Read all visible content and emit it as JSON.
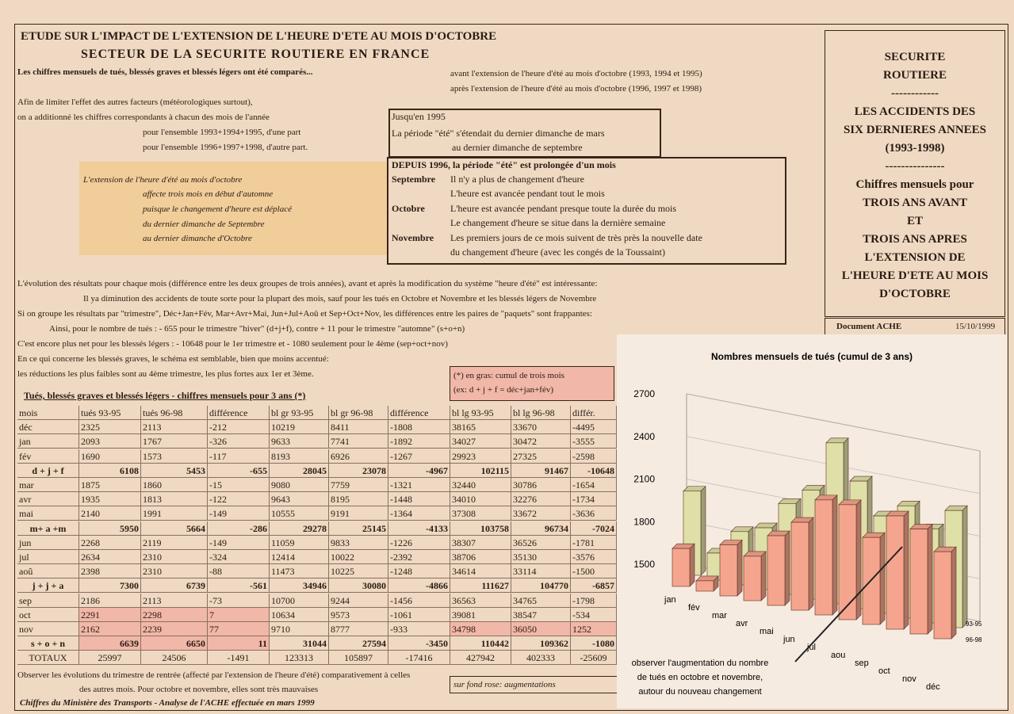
{
  "header": {
    "title": "ETUDE SUR L'IMPACT DE L'EXTENSION DE L'HEURE D'ETE AU MOIS D'OCTOBRE",
    "subtitle": "SECTEUR DE LA SECURITE ROUTIERE EN FRANCE"
  },
  "intro": {
    "compared": "Les chiffres mensuels de tués, blessés graves et blessés légers ont été comparés...",
    "before": "avant l'extension de l'heure d'été au mois d'octobre (1993, 1994 et 1995)",
    "after": "après l'extension de l'heure d'été au mois d'octobre (1996, 1997 et 1998)",
    "lines": [
      "Afin de limiter l'effet des autres facteurs (météorologiques surtout),",
      "on a additionné les chiffres correspondants à chacun des mois de l'année",
      "pour l'ensemble 1993+1994+1995, d'une part",
      "pour l'ensemble 1996+1997+1998, d'autre part."
    ]
  },
  "italic_note": [
    "L'extension de l'heure d'été au mois d'octobre",
    "affecte trois mois en début d'automne",
    "puisque le changement d'heure est déplacé",
    "du dernier dimanche de Septembre",
    "au dernier dimanche d'Octobre"
  ],
  "box_until_1995": {
    "heading": "Jusqu'en 1995",
    "lines": [
      "La période \"été\" s'étendait du dernier dimanche de mars",
      "au dernier dimanche de septembre"
    ]
  },
  "box_since_1996": {
    "heading": "DEPUIS 1996, la période \"été\" est prolongée d'un mois",
    "months": [
      {
        "month": "Septembre",
        "lines": [
          "Il n'y a plus de changement d'heure",
          "L'heure est avancée pendant tout le mois"
        ]
      },
      {
        "month": "Octobre",
        "lines": [
          "L'heure est avancée pendant presque toute la durée du mois",
          "Le changement d'heure se situe dans la dernière semaine"
        ]
      },
      {
        "month": "Novembre",
        "lines": [
          "Les premiers jours de ce mois suivent de très près la nouvelle date",
          "du changement d'heure (avec les congés de la Toussaint)"
        ]
      }
    ]
  },
  "analysis": [
    "L'évolution des résultats pour chaque mois (différence entre les deux groupes de trois années), avant et après la modification du système \"heure d'été\" est intéressante:",
    "Il ya diminution des accidents de toute sorte pour la plupart des mois, sauf pour les tués en Octobre et Novembre et les blessés légers de Novembre",
    "Si on groupe les résultats par \"trimestre\", Déc+Jan+Fév, Mar+Avr+Mai, Jun+Jul+Aoû et Sep+Oct+Nov, les différences entre les paires de \"paquets\" sont frappantes:",
    "Ainsi, pour le nombre de tués : - 655 pour le trimestre \"hiver\" (d+j+f), contre + 11 pour le trimestre \"automne\" (s+o+n)",
    "C'est encore plus net pour les blessés légers : - 10648 pour le 1er trimestre et - 1080 seulement pour le 4ème (sep+oct+nov)",
    "En ce qui concerne les blessés graves, le schéma est semblable, bien que moins accentué:",
    "les réductions les plus faibles sont au 4ème trimestre, les plus fortes aux 1er et 3ème."
  ],
  "note_box": [
    "(*) en gras: cumul de trois mois",
    "(ex: d + j + f = déc+jan+fév)"
  ],
  "table": {
    "title": "Tués, blessés graves et blessés légers - chiffres mensuels pour 3 ans (*)",
    "columns": [
      "mois",
      "tués 93-95",
      "tués 96-98",
      "différence",
      "bl gr 93-95",
      "bl gr 96-98",
      "différence",
      "bl lg 93-95",
      "bl lg 96-98",
      "différ."
    ],
    "rows": [
      [
        "déc",
        2325,
        2113,
        -212,
        10219,
        8411,
        -1808,
        38165,
        33670,
        -4495
      ],
      [
        "jan",
        2093,
        1767,
        -326,
        9633,
        7741,
        -1892,
        34027,
        30472,
        -3555
      ],
      [
        "fév",
        1690,
        1573,
        -117,
        8193,
        6926,
        -1267,
        29923,
        27325,
        -2598
      ],
      [
        "d + j + f",
        6108,
        5453,
        -655,
        28045,
        23078,
        -4967,
        102115,
        91467,
        -10648
      ],
      [
        "mar",
        1875,
        1860,
        -15,
        9080,
        7759,
        -1321,
        32440,
        30786,
        -1654
      ],
      [
        "avr",
        1935,
        1813,
        -122,
        9643,
        8195,
        -1448,
        34010,
        32276,
        -1734
      ],
      [
        "mai",
        2140,
        1991,
        -149,
        10555,
        9191,
        -1364,
        37308,
        33672,
        -3636
      ],
      [
        "m+ a +m",
        5950,
        5664,
        -286,
        29278,
        25145,
        -4133,
        103758,
        96734,
        -7024
      ],
      [
        "jun",
        2268,
        2119,
        -149,
        11059,
        9833,
        -1226,
        38307,
        36526,
        -1781
      ],
      [
        "jul",
        2634,
        2310,
        -324,
        12414,
        10022,
        -2392,
        38706,
        35130,
        -3576
      ],
      [
        "aoû",
        2398,
        2310,
        -88,
        11473,
        10225,
        -1248,
        34614,
        33114,
        -1500
      ],
      [
        "j + j + a",
        7300,
        6739,
        -561,
        34946,
        30080,
        -4866,
        111627,
        104770,
        -6857
      ],
      [
        "sep",
        2186,
        2113,
        -73,
        10700,
        9244,
        -1456,
        36563,
        34765,
        -1798
      ],
      [
        "oct",
        2291,
        2298,
        7,
        10634,
        9573,
        -1061,
        39081,
        38547,
        -534
      ],
      [
        "nov",
        2162,
        2239,
        77,
        9710,
        8777,
        -933,
        34798,
        36050,
        1252
      ],
      [
        "s + o + n",
        6639,
        6650,
        11,
        31044,
        27594,
        -3450,
        110442,
        109362,
        -1080
      ],
      [
        "TOTAUX",
        25997,
        24506,
        -1491,
        123313,
        105897,
        -17416,
        427942,
        402333,
        -25609
      ]
    ]
  },
  "footer": {
    "lines": [
      "Observer les évolutions du trimestre de rentrée (affecté par l'extension de l'heure d'été) comparativement à celles",
      "des autres mois. Pour octobre et novembre, elles sont très mauvaises"
    ],
    "pink_note": "sur fond rose: augmentations",
    "source": "Chiffres du Ministère des Transports - Analyse de l'ACHE effectuée en mars 1999"
  },
  "sidebar": {
    "lines": [
      "SECURITE",
      "ROUTIERE",
      "------------",
      "LES ACCIDENTS DES",
      "SIX DERNIERES ANNEES",
      "(1993-1998)",
      "---------------",
      "Chiffres mensuels pour",
      "TROIS ANS AVANT",
      "ET",
      "TROIS ANS APRES",
      "L'EXTENSION DE",
      "L'HEURE D'ETE AU MOIS",
      "D'OCTOBRE"
    ],
    "document": "Document ACHE",
    "date": "15/10/1999"
  },
  "chart": {
    "type": "bar3d",
    "title": "Nombres mensuels de tués (cumul de 3 ans)",
    "categories": [
      "jan",
      "fév",
      "mar",
      "avr",
      "mai",
      "jun",
      "jul",
      "aou",
      "sep",
      "oct",
      "nov",
      "déc"
    ],
    "series": [
      {
        "name": "93-95",
        "color": "#dfe0a8",
        "values": [
          2093,
          1690,
          1875,
          1935,
          2140,
          2268,
          2634,
          2398,
          2186,
          2291,
          2162,
          2325
        ]
      },
      {
        "name": "96-98",
        "color": "#f5a58e",
        "values": [
          1767,
          1573,
          1860,
          1813,
          1991,
          2119,
          2310,
          2310,
          2113,
          2298,
          2239,
          2113
        ]
      }
    ],
    "ylim": [
      1500,
      2700
    ],
    "yticks": [
      1500,
      1800,
      2100,
      2400,
      2700
    ],
    "note": [
      "observer l'augmentation du nombre",
      "de tués en octobre et novembre,",
      "autour du nouveau changement"
    ]
  }
}
